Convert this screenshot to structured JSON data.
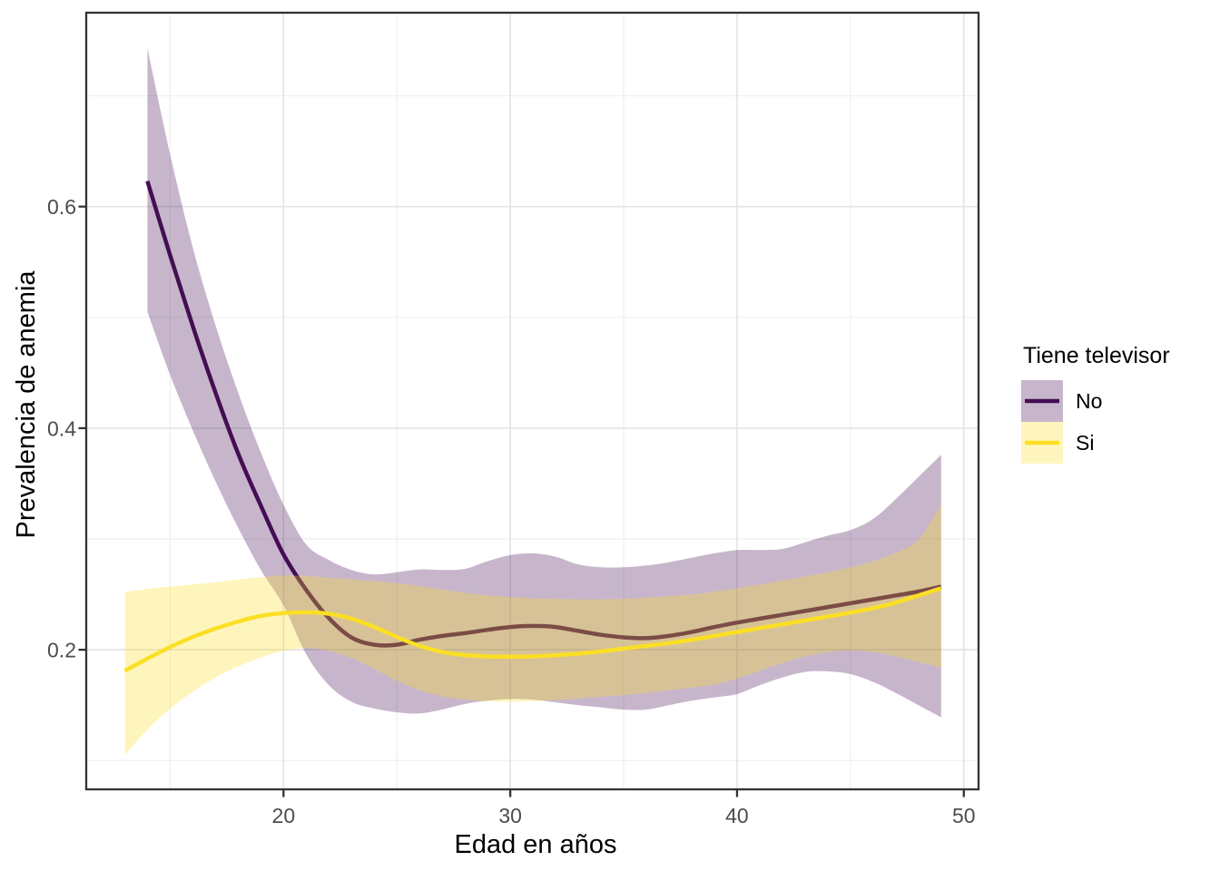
{
  "figure": {
    "background": "#FFFFFF",
    "panel_border_color": "#333333",
    "grid_major_color": "#E4E4E4",
    "grid_minor_color": "#EFEFEF",
    "tick_color": "#333333",
    "tick_label_color": "#4D4D4D",
    "axis_title_color": "#000000"
  },
  "chart_data": {
    "type": "line",
    "title": "",
    "xlabel": "Edad en años",
    "ylabel": "Prevalencia de anemia",
    "xlim": [
      11.3,
      50.65
    ],
    "ylim": [
      0.074,
      0.775
    ],
    "grid": true,
    "x_major_ticks": [
      20,
      30,
      40,
      50
    ],
    "x_minor_ticks": [
      15,
      25,
      35,
      45
    ],
    "y_major_ticks": [
      0.2,
      0.4,
      0.6
    ],
    "y_minor_ticks": [
      0.1,
      0.3,
      0.5,
      0.7
    ],
    "x_tick_labels": [
      "20",
      "30",
      "40",
      "50"
    ],
    "y_tick_labels": [
      "0.2",
      "0.4",
      "0.6"
    ],
    "ribbon_opacity": 0.3,
    "legend": {
      "title": "Tiene televisor",
      "position": "right",
      "entries": [
        {
          "label": "No",
          "color": "#440D54"
        },
        {
          "label": "Si",
          "color": "#FBDF24"
        }
      ]
    },
    "series": [
      {
        "name": "No",
        "color": "#440D54",
        "x": [
          14,
          15,
          16,
          17,
          18,
          19,
          20,
          21,
          22,
          23,
          24,
          25,
          26,
          27,
          28,
          29,
          30,
          31,
          32,
          33,
          34,
          35,
          36,
          37,
          38,
          39,
          40,
          41,
          42,
          43,
          44,
          45,
          46,
          47,
          48,
          49
        ],
        "y": [
          0.623,
          0.556,
          0.492,
          0.432,
          0.377,
          0.33,
          0.286,
          0.254,
          0.2285,
          0.211,
          0.2045,
          0.2045,
          0.209,
          0.2125,
          0.215,
          0.218,
          0.2205,
          0.2215,
          0.2205,
          0.217,
          0.2135,
          0.2112,
          0.2105,
          0.2125,
          0.216,
          0.2205,
          0.2245,
          0.228,
          0.2315,
          0.235,
          0.2385,
          0.242,
          0.2455,
          0.249,
          0.2525,
          0.257
        ],
        "ymin": [
          0.505,
          0.448,
          0.398,
          0.352,
          0.31,
          0.272,
          0.24,
          0.196,
          0.168,
          0.153,
          0.147,
          0.1435,
          0.1425,
          0.146,
          0.151,
          0.154,
          0.1555,
          0.155,
          0.1525,
          0.15,
          0.148,
          0.146,
          0.146,
          0.15,
          0.154,
          0.157,
          0.16,
          0.168,
          0.175,
          0.18,
          0.1805,
          0.178,
          0.171,
          0.161,
          0.15,
          0.139
        ],
        "ymax": [
          0.743,
          0.647,
          0.563,
          0.493,
          0.432,
          0.378,
          0.331,
          0.295,
          0.281,
          0.272,
          0.268,
          0.27,
          0.2725,
          0.272,
          0.273,
          0.28,
          0.2855,
          0.287,
          0.284,
          0.277,
          0.2745,
          0.2745,
          0.276,
          0.279,
          0.283,
          0.287,
          0.29,
          0.29,
          0.291,
          0.297,
          0.303,
          0.308,
          0.318,
          0.336,
          0.356,
          0.376
        ]
      },
      {
        "name": "Si",
        "color": "#FBDF24",
        "x": [
          13,
          14,
          15,
          16,
          17,
          18,
          19,
          20,
          21,
          22,
          23,
          24,
          25,
          26,
          27,
          28,
          29,
          30,
          31,
          32,
          33,
          34,
          35,
          36,
          37,
          38,
          39,
          40,
          41,
          42,
          43,
          44,
          45,
          46,
          47,
          48,
          49
        ],
        "y": [
          0.181,
          0.192,
          0.2025,
          0.2115,
          0.219,
          0.2255,
          0.2305,
          0.233,
          0.2338,
          0.2325,
          0.228,
          0.2205,
          0.2115,
          0.2035,
          0.198,
          0.1952,
          0.194,
          0.1938,
          0.194,
          0.195,
          0.1965,
          0.1985,
          0.201,
          0.2035,
          0.206,
          0.209,
          0.2125,
          0.216,
          0.2195,
          0.223,
          0.2265,
          0.23,
          0.2335,
          0.2375,
          0.2425,
          0.249,
          0.2555
        ],
        "ymin": [
          0.105,
          0.128,
          0.147,
          0.162,
          0.175,
          0.185,
          0.193,
          0.199,
          0.2015,
          0.199,
          0.1925,
          0.1825,
          0.172,
          0.1635,
          0.158,
          0.155,
          0.1535,
          0.153,
          0.1535,
          0.1545,
          0.156,
          0.1575,
          0.159,
          0.161,
          0.1635,
          0.166,
          0.1685,
          0.174,
          0.181,
          0.188,
          0.194,
          0.198,
          0.1995,
          0.198,
          0.194,
          0.189,
          0.184
        ],
        "ymax": [
          0.252,
          0.255,
          0.257,
          0.259,
          0.261,
          0.2635,
          0.2655,
          0.267,
          0.2665,
          0.265,
          0.2635,
          0.262,
          0.26,
          0.2575,
          0.2545,
          0.2515,
          0.249,
          0.2475,
          0.2465,
          0.246,
          0.2455,
          0.2455,
          0.246,
          0.247,
          0.2485,
          0.25,
          0.2525,
          0.2555,
          0.259,
          0.2625,
          0.266,
          0.27,
          0.2745,
          0.28,
          0.2875,
          0.2995,
          0.331
        ]
      }
    ]
  }
}
